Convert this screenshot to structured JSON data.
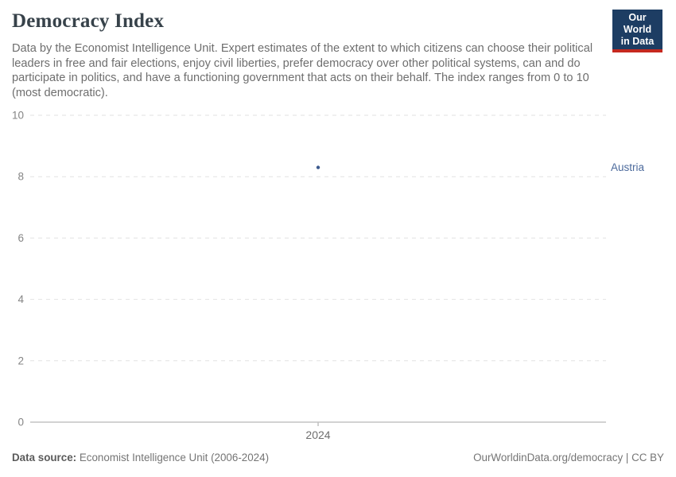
{
  "header": {
    "title": "Democracy Index",
    "subtitle": "Data by the Economist Intelligence Unit. Expert estimates of the extent to which citizens can choose their political leaders in free and fair elections, enjoy civil liberties, prefer democracy over other political systems, can and do participate in politics, and have a functioning government that acts on their behalf. The index ranges from 0 to 10 (most democratic)."
  },
  "logo": {
    "line1": "Our World",
    "line2": "in Data",
    "bg_color": "#1d3d63",
    "bar_color": "#c5291f",
    "text_color": "#ffffff"
  },
  "footer": {
    "datasource_label": "Data source:",
    "datasource_value": " Economist Intelligence Unit (2006-2024)",
    "attribution": "OurWorldinData.org/democracy | CC BY"
  },
  "chart_data": {
    "type": "scatter",
    "title": "Democracy Index",
    "x": [
      2024
    ],
    "series": [
      {
        "name": "Austria",
        "values": [
          8.3
        ],
        "color": "#4c6a9c",
        "point_color": "#3d5a8e"
      }
    ],
    "ylim": [
      0,
      10
    ],
    "yticks": [
      0,
      2,
      4,
      6,
      8,
      10
    ],
    "xticks": [
      2024
    ],
    "xlabel": "",
    "ylabel": "",
    "grid": "horizontal-dashed",
    "grid_color": "#e2e2e2",
    "axis_line_color": "#a5a5a5",
    "tick_color": "#c0c0c0",
    "axis_label_color": "#858585",
    "x_label_color": "#6e6e6e",
    "legend_position": "right-entity-label",
    "entity_labels": [
      {
        "text": "Austria",
        "color": "#4c6a9c"
      }
    ]
  }
}
